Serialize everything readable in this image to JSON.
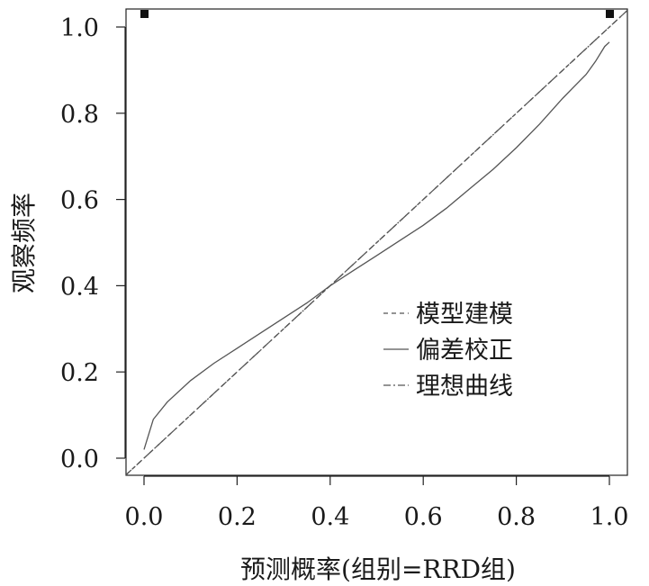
{
  "chart_data": {
    "type": "line",
    "title": "",
    "xlabel": "预测概率(组别=RRD组)",
    "ylabel": "观察频率",
    "xlim": [
      0.0,
      1.0
    ],
    "ylim": [
      0.0,
      1.0
    ],
    "x_ticks": [
      "0.0",
      "0.2",
      "0.4",
      "0.6",
      "0.8",
      "1.0"
    ],
    "y_ticks": [
      "0.0",
      "0.2",
      "0.4",
      "0.6",
      "0.8",
      "1.0"
    ],
    "grid": false,
    "legend_position": "center-right",
    "series": [
      {
        "name": "模型建模",
        "style": "dashed",
        "color": "#555555",
        "x": [
          0.0,
          1.0
        ],
        "y": [
          0.0,
          1.0
        ]
      },
      {
        "name": "偏差校正",
        "style": "solid",
        "color": "#555555",
        "x": [
          0.0,
          0.02,
          0.05,
          0.1,
          0.15,
          0.2,
          0.25,
          0.3,
          0.35,
          0.4,
          0.45,
          0.5,
          0.55,
          0.6,
          0.65,
          0.7,
          0.75,
          0.8,
          0.85,
          0.9,
          0.95,
          0.97,
          0.99,
          1.0
        ],
        "y": [
          0.02,
          0.09,
          0.13,
          0.18,
          0.22,
          0.255,
          0.29,
          0.325,
          0.36,
          0.4,
          0.435,
          0.47,
          0.505,
          0.54,
          0.58,
          0.625,
          0.67,
          0.72,
          0.775,
          0.835,
          0.89,
          0.92,
          0.955,
          0.965
        ]
      },
      {
        "name": "理想曲线",
        "style": "dashdot",
        "color": "#555555",
        "x": [
          0.0,
          1.0
        ],
        "y": [
          0.0,
          1.0
        ]
      }
    ],
    "markers": [
      {
        "x": 0.0,
        "y": 1.03
      },
      {
        "x": 1.0,
        "y": 1.03
      }
    ]
  }
}
